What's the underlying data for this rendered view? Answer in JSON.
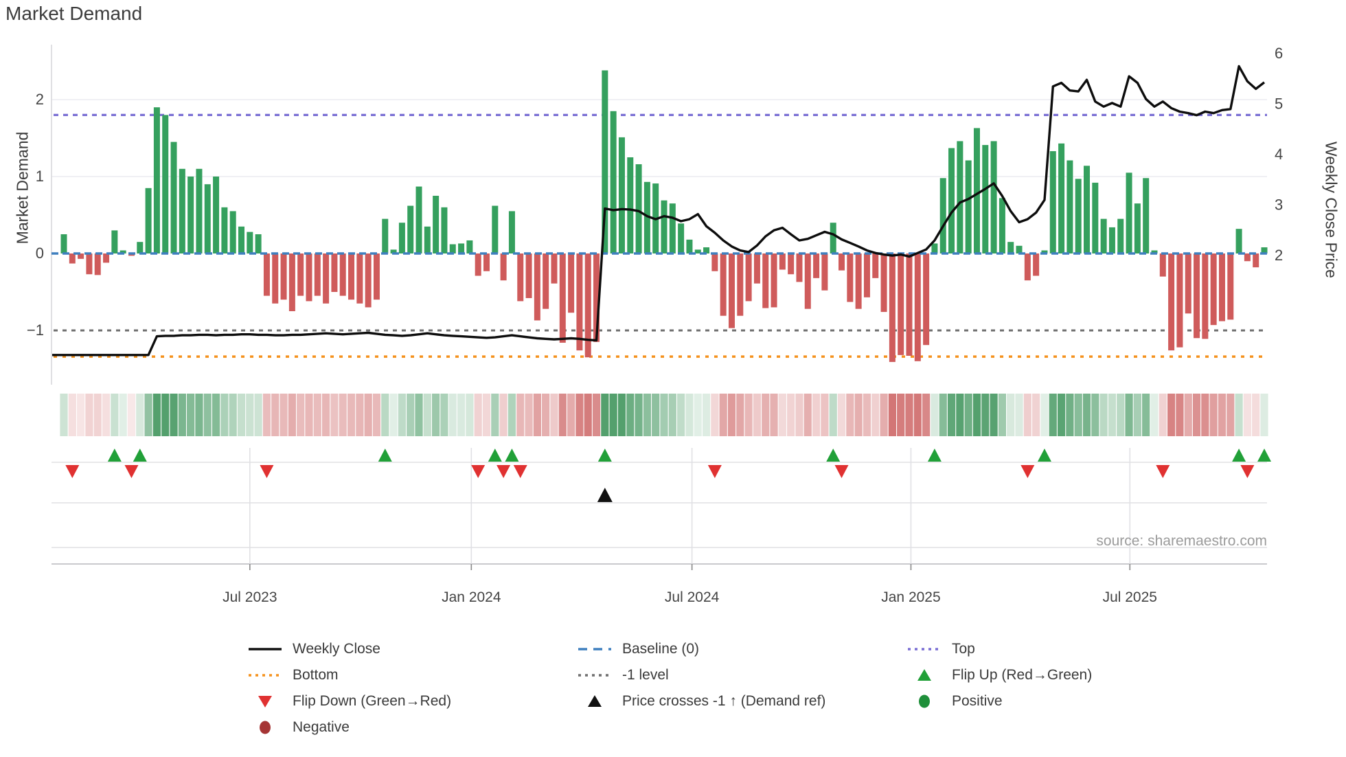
{
  "title": "Market Demand",
  "source": "source: sharemaestro.com",
  "y_left": {
    "label": "Market Demand",
    "ticks": [
      {
        "label": "2",
        "value": 2
      },
      {
        "label": "1",
        "value": 1
      },
      {
        "label": "0",
        "value": 0
      },
      {
        "label": "−1",
        "value": -1
      }
    ]
  },
  "y_right": {
    "label": "Weekly Close Price",
    "ticks": [
      {
        "label": "6",
        "value": 6
      },
      {
        "label": "5",
        "value": 5
      },
      {
        "label": "4",
        "value": 4
      },
      {
        "label": "3",
        "value": 3
      },
      {
        "label": "2",
        "value": 2
      }
    ]
  },
  "x_ticks": [
    {
      "label": "Jul 2023",
      "week": 22
    },
    {
      "label": "Jan 2024",
      "week": 48.2
    },
    {
      "label": "Jul 2024",
      "week": 74.3
    },
    {
      "label": "Jan 2025",
      "week": 100.2
    },
    {
      "label": "Jul 2025",
      "week": 126.1
    }
  ],
  "colors": {
    "bar_positive": "#35a05e",
    "bar_negative": "#cf5b5b",
    "price_line": "#0d0d0d",
    "baseline": "#4080bf",
    "top_line": "#7a6fd4",
    "bottom_line": "#f5921e",
    "minus_one_line": "#6f6f6f",
    "flip_up": "#21a038",
    "flip_down": "#e03131",
    "price_cross": "#111111",
    "positive_dot": "#1f8f3a",
    "negative_dot": "#a53434",
    "grid": "#ececf1",
    "panel_line": "#e0e0e4",
    "axis_line": "#c9c9cd",
    "tick_text": "#444444"
  },
  "chart_data": {
    "type": "bar+line",
    "x_unit": "week_index",
    "n_weeks": 143,
    "series": [
      {
        "name": "Market Demand",
        "type": "bar",
        "axis": "left",
        "values": [
          0.25,
          -0.13,
          -0.07,
          -0.27,
          -0.28,
          -0.12,
          0.3,
          0.04,
          -0.03,
          0.15,
          0.85,
          1.9,
          1.8,
          1.45,
          1.1,
          1.0,
          1.1,
          0.9,
          1.0,
          0.6,
          0.55,
          0.35,
          0.28,
          0.25,
          -0.55,
          -0.65,
          -0.6,
          -0.75,
          -0.55,
          -0.62,
          -0.55,
          -0.65,
          -0.5,
          -0.55,
          -0.6,
          -0.65,
          -0.7,
          -0.6,
          0.45,
          0.05,
          0.4,
          0.62,
          0.87,
          0.35,
          0.75,
          0.6,
          0.12,
          0.13,
          0.17,
          -0.29,
          -0.23,
          0.62,
          -0.35,
          0.55,
          -0.62,
          -0.58,
          -0.87,
          -0.72,
          -0.39,
          -1.16,
          -0.77,
          -1.26,
          -1.35,
          -1.15,
          2.38,
          1.85,
          1.51,
          1.25,
          1.16,
          0.93,
          0.91,
          0.69,
          0.65,
          0.39,
          0.18,
          0.05,
          0.08,
          -0.23,
          -0.81,
          -0.97,
          -0.81,
          -0.62,
          -0.39,
          -0.71,
          -0.7,
          -0.21,
          -0.27,
          -0.37,
          -0.72,
          -0.32,
          -0.48,
          0.4,
          -0.22,
          -0.63,
          -0.72,
          -0.57,
          -0.32,
          -0.76,
          -1.41,
          -1.32,
          -1.33,
          -1.4,
          -1.19,
          0.13,
          0.98,
          1.37,
          1.46,
          1.21,
          1.63,
          1.41,
          1.46,
          0.72,
          0.15,
          0.1,
          -0.35,
          -0.29,
          0.04,
          1.33,
          1.43,
          1.21,
          0.97,
          1.14,
          0.92,
          0.45,
          0.34,
          0.45,
          1.05,
          0.65,
          0.98,
          0.04,
          -0.3,
          -1.26,
          -1.22,
          -0.78,
          -1.1,
          -1.11,
          -0.93,
          -0.88,
          -0.86,
          0.32,
          -0.1,
          -0.18,
          0.08
        ]
      },
      {
        "name": "Weekly Close",
        "type": "line",
        "axis": "right",
        "values": [
          0.03,
          0.03,
          0.03,
          0.03,
          0.03,
          0.03,
          0.03,
          0.03,
          0.03,
          0.03,
          0.03,
          0.4,
          0.41,
          0.41,
          0.42,
          0.42,
          0.43,
          0.43,
          0.42,
          0.43,
          0.43,
          0.44,
          0.44,
          0.43,
          0.43,
          0.42,
          0.42,
          0.43,
          0.43,
          0.44,
          0.45,
          0.46,
          0.45,
          0.44,
          0.45,
          0.46,
          0.47,
          0.45,
          0.43,
          0.42,
          0.41,
          0.42,
          0.44,
          0.46,
          0.44,
          0.42,
          0.41,
          0.4,
          0.39,
          0.38,
          0.37,
          0.38,
          0.4,
          0.42,
          0.4,
          0.38,
          0.36,
          0.35,
          0.34,
          0.35,
          0.36,
          0.35,
          0.33,
          0.32,
          2.93,
          2.9,
          2.92,
          2.91,
          2.88,
          2.78,
          2.72,
          2.78,
          2.75,
          2.68,
          2.72,
          2.82,
          2.58,
          2.45,
          2.3,
          2.18,
          2.1,
          2.07,
          2.2,
          2.38,
          2.5,
          2.55,
          2.42,
          2.3,
          2.33,
          2.4,
          2.47,
          2.42,
          2.32,
          2.25,
          2.18,
          2.1,
          2.05,
          2.02,
          2.0,
          2.02,
          1.98,
          2.05,
          2.12,
          2.3,
          2.58,
          2.85,
          3.05,
          3.12,
          3.22,
          3.32,
          3.43,
          3.18,
          2.88,
          2.66,
          2.72,
          2.85,
          3.1,
          5.35,
          5.42,
          5.27,
          5.25,
          5.48,
          5.05,
          4.95,
          5.02,
          4.95,
          5.55,
          5.42,
          5.1,
          4.95,
          5.05,
          4.92,
          4.85,
          4.82,
          4.78,
          4.85,
          4.82,
          4.88,
          4.9,
          5.75,
          5.45,
          5.3,
          5.43
        ]
      }
    ],
    "reference_lines": {
      "baseline": 0,
      "top": 1.8,
      "bottom": -1.34,
      "minus_one_level": -1
    },
    "markers": {
      "flip_up_weeks": [
        6,
        9,
        38,
        51,
        53,
        64,
        91,
        103,
        116,
        139,
        142
      ],
      "flip_down_weeks": [
        1,
        8,
        24,
        49,
        52,
        54,
        77,
        92,
        114,
        130,
        140
      ],
      "price_cross_weeks": [
        64
      ]
    },
    "heatmap": "derived: sign/magnitude of Market Demand per week",
    "axis_ranges": {
      "left": [
        -1.6,
        2.7
      ],
      "right": [
        -0.1,
        6.1
      ]
    },
    "legend_position": "bottom"
  },
  "legend": {
    "items": [
      {
        "icon": "line",
        "color": "#111111",
        "label": "Weekly Close"
      },
      {
        "icon": "dash",
        "color": "#4080bf",
        "label": "Baseline (0)"
      },
      {
        "icon": "dot",
        "color": "#7a6fd4",
        "label": "Top"
      },
      {
        "icon": "dot",
        "color": "#f5921e",
        "label": "Bottom"
      },
      {
        "icon": "dot",
        "color": "#6f6f6f",
        "label": "-1 level"
      },
      {
        "icon": "tri-up",
        "color": "#21a038",
        "label": "Flip Up (Red→Green)"
      },
      {
        "icon": "tri-down",
        "color": "#e03131",
        "label": "Flip Down (Green→Red)"
      },
      {
        "icon": "tri-up",
        "color": "#111111",
        "label": "Price crosses -1 ↑ (Demand ref)"
      },
      {
        "icon": "circle",
        "color": "#1f8f3a",
        "label": "Positive"
      },
      {
        "icon": "circle",
        "color": "#a53434",
        "label": "Negative"
      }
    ]
  }
}
